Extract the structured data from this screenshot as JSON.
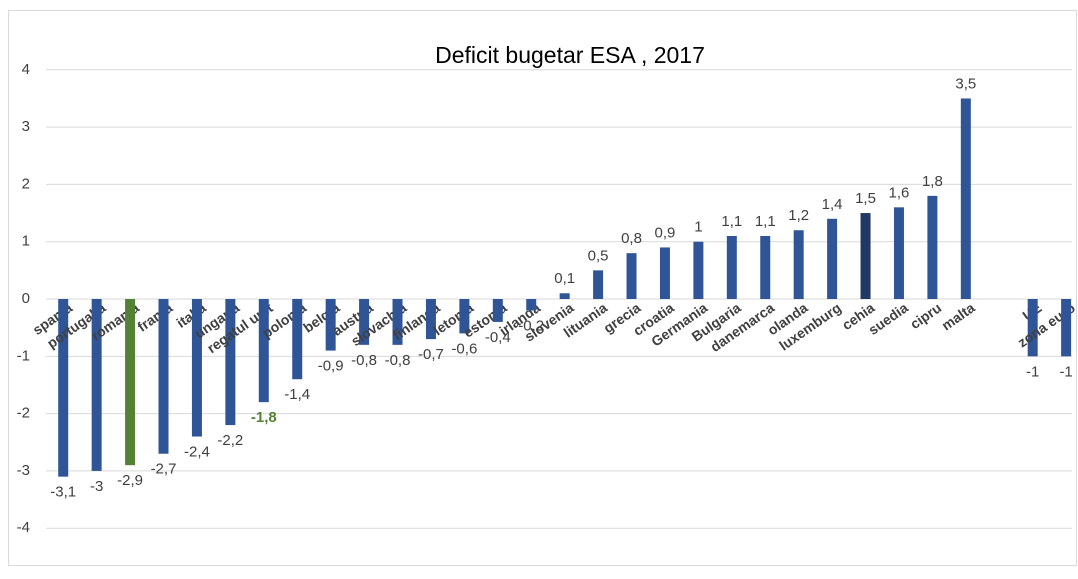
{
  "chart_data": {
    "type": "bar",
    "title": "Deficit bugetar ESA , 2017",
    "categories": [
      "spania",
      "portugalia",
      "romania",
      "franta",
      "italia",
      "ungaria",
      "regatul unit",
      "polonia",
      "belgia",
      "austria",
      "slovachia",
      "finlanda",
      "letonia",
      "estonia",
      "irlanda",
      "slovenia",
      "lituania",
      "grecia",
      "croatia",
      "Germania",
      "Bulgaria",
      "danemarca",
      "olanda",
      "luxemburg",
      "cehia",
      "suedia",
      "cipru",
      "malta",
      null,
      "UE",
      "zona euro"
    ],
    "values": [
      -3.1,
      -3,
      -2.9,
      -2.7,
      -2.4,
      -2.2,
      -1.8,
      -1.4,
      -0.9,
      -0.8,
      -0.8,
      -0.7,
      -0.6,
      -0.4,
      -0.2,
      0.1,
      0.5,
      0.8,
      0.9,
      1,
      1.1,
      1.1,
      1.2,
      1.4,
      1.5,
      1.6,
      1.8,
      3.5,
      null,
      -1,
      -1
    ],
    "value_labels": [
      "-3,1",
      "-3",
      "-2,9",
      "-2,7",
      "-2,4",
      "-2,2",
      "-1,8",
      "-1,4",
      "-0,9",
      "-0,8",
      "-0,8",
      "-0,7",
      "-0,6",
      "-0,4",
      "-0,2",
      "0,1",
      "0,5",
      "0,8",
      "0,9",
      "1",
      "1,1",
      "1,1",
      "1,2",
      "1,4",
      "1,5",
      "1,6",
      "1,8",
      "3,5",
      null,
      "-1",
      "-1"
    ],
    "color": "#2f5597",
    "colors": [
      null,
      null,
      "#548235",
      null,
      null,
      null,
      null,
      null,
      null,
      null,
      null,
      null,
      null,
      null,
      null,
      null,
      null,
      null,
      null,
      null,
      null,
      null,
      null,
      null,
      "#1f3864",
      null,
      null,
      null,
      null,
      null,
      null
    ],
    "value_label_colors": [
      null,
      null,
      null,
      null,
      null,
      null,
      "#548235",
      null,
      null,
      null,
      null,
      null,
      null,
      null,
      null,
      null,
      null,
      null,
      null,
      null,
      null,
      null,
      null,
      null,
      null,
      null,
      null,
      null,
      null,
      null,
      null
    ],
    "ylim": [
      -4.6,
      5
    ],
    "yticks": [
      -4,
      -3,
      -2,
      -1,
      0,
      1,
      2,
      3,
      4
    ],
    "grid": true
  }
}
